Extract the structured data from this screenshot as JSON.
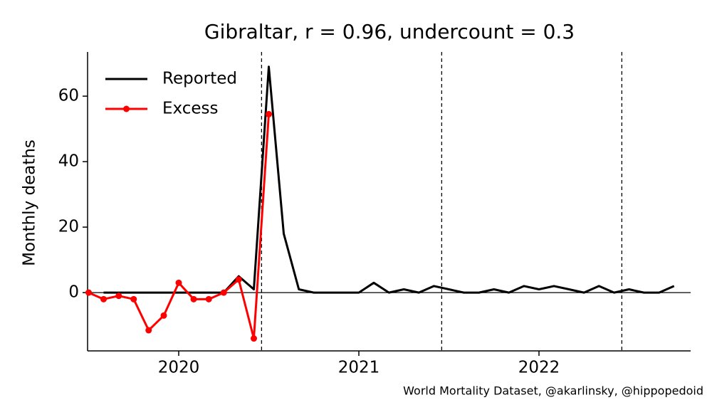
{
  "chart_data": {
    "type": "line",
    "title": "Gibraltar, r = 0.96, undercount = 0.3",
    "ylabel": "Monthly deaths",
    "footnote": "World Mortality Dataset, @akarlinsky, @hippopedoid",
    "x": [
      2019.5,
      2019.583,
      2019.667,
      2019.75,
      2019.833,
      2019.917,
      2020.0,
      2020.083,
      2020.167,
      2020.25,
      2020.333,
      2020.417,
      2020.5,
      2020.583,
      2020.667,
      2020.75,
      2020.833,
      2020.917,
      2021.0,
      2021.083,
      2021.167,
      2021.25,
      2021.333,
      2021.417,
      2021.5,
      2021.583,
      2021.667,
      2021.75,
      2021.833,
      2021.917,
      2022.0,
      2022.083,
      2022.167,
      2022.25,
      2022.333,
      2022.417,
      2022.5,
      2022.583,
      2022.667,
      2022.75
    ],
    "series": [
      {
        "name": "Reported",
        "color": "#000000",
        "marker": false,
        "values": [
          null,
          0,
          0,
          0,
          0,
          0,
          0,
          0,
          0,
          0,
          5,
          1,
          69,
          18,
          1,
          0,
          0,
          0,
          0,
          3,
          0,
          1,
          0,
          2,
          1,
          0,
          0,
          1,
          0,
          2,
          1,
          2,
          1,
          0,
          2,
          0,
          1,
          0,
          0,
          2
        ]
      },
      {
        "name": "Excess",
        "color": "#ff0000",
        "marker": true,
        "values": [
          0,
          -2,
          -1,
          -2,
          -11.5,
          -7,
          3,
          -2,
          -2,
          0,
          4,
          -14,
          54.5,
          null,
          null,
          null,
          null,
          null,
          null,
          null,
          null,
          null,
          null,
          null,
          null,
          null,
          null,
          null,
          null,
          null,
          null,
          null,
          null,
          null,
          null,
          null,
          null,
          null,
          null,
          null
        ]
      }
    ],
    "vlines": [
      2020.46,
      2021.46,
      2022.46
    ],
    "xlim": [
      2019.494,
      2022.842
    ],
    "xticks": [
      2020,
      2021,
      2022
    ],
    "ylim": [
      -17.8,
      73.5
    ],
    "yticks": [
      0,
      20,
      40,
      60
    ],
    "legend": "upper left"
  }
}
